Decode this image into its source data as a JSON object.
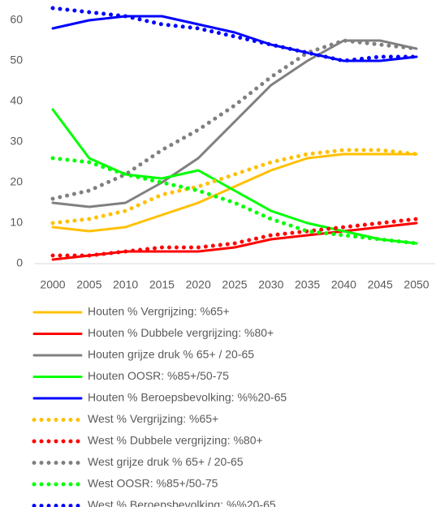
{
  "chart_data": {
    "type": "line",
    "categories": [
      "2000",
      "2005",
      "2010",
      "2015",
      "2020",
      "2025",
      "2030",
      "2035",
      "2040",
      "2045",
      "2050"
    ],
    "ylim": [
      0,
      65
    ],
    "yticks": [
      0,
      10,
      20,
      30,
      40,
      50,
      60
    ],
    "legend": "bottom",
    "series": [
      {
        "name": "Houten % Vergrijzing: %65+",
        "color": "#ffc000",
        "dash": "solid",
        "values": [
          9,
          8,
          9,
          12,
          15,
          19,
          23,
          26,
          27,
          27,
          27
        ]
      },
      {
        "name": "Houten % Dubbele vergrijzing: %80+",
        "color": "#ff0000",
        "dash": "solid",
        "values": [
          1,
          2,
          3,
          3,
          3,
          4,
          6,
          7,
          8,
          9,
          10
        ]
      },
      {
        "name": "Houten grijze druk % 65+ / 20-65",
        "color": "#808080",
        "dash": "solid",
        "values": [
          15,
          14,
          15,
          20,
          26,
          35,
          44,
          50,
          55,
          55,
          53
        ]
      },
      {
        "name": "Houten OOSR: %85+/50-75",
        "color": "#00ff00",
        "dash": "solid",
        "values": [
          38,
          26,
          22,
          21,
          23,
          18,
          13,
          10,
          8,
          6,
          5
        ]
      },
      {
        "name": "Houten % Beroepsbevolking: %%20-65",
        "color": "#0000ff",
        "dash": "solid",
        "values": [
          58,
          60,
          61,
          61,
          59,
          57,
          54,
          52,
          50,
          50,
          51
        ]
      },
      {
        "name": "West % Vergrijzing: %65+",
        "color": "#ffc000",
        "dash": "dotted",
        "values": [
          10,
          11,
          13,
          17,
          19,
          22,
          25,
          27,
          28,
          28,
          27
        ]
      },
      {
        "name": "West % Dubbele vergrijzing: %80+",
        "color": "#ff0000",
        "dash": "dotted",
        "values": [
          2,
          2,
          3,
          4,
          4,
          5,
          7,
          8,
          9,
          10,
          11
        ]
      },
      {
        "name": "West grijze druk % 65+ / 20-65",
        "color": "#808080",
        "dash": "dotted",
        "values": [
          16,
          18,
          22,
          28,
          33,
          39,
          46,
          52,
          55,
          54,
          53
        ]
      },
      {
        "name": "West OOSR: %85+/50-75",
        "color": "#00ff00",
        "dash": "dotted",
        "values": [
          26,
          25,
          22,
          20,
          18,
          15,
          11,
          8,
          7,
          6,
          5
        ]
      },
      {
        "name": "West % Beroepsbevolking: %%20-65",
        "color": "#0000ff",
        "dash": "dotted",
        "values": [
          63,
          62,
          61,
          59,
          58,
          56,
          54,
          52,
          50,
          51,
          51
        ]
      }
    ]
  }
}
